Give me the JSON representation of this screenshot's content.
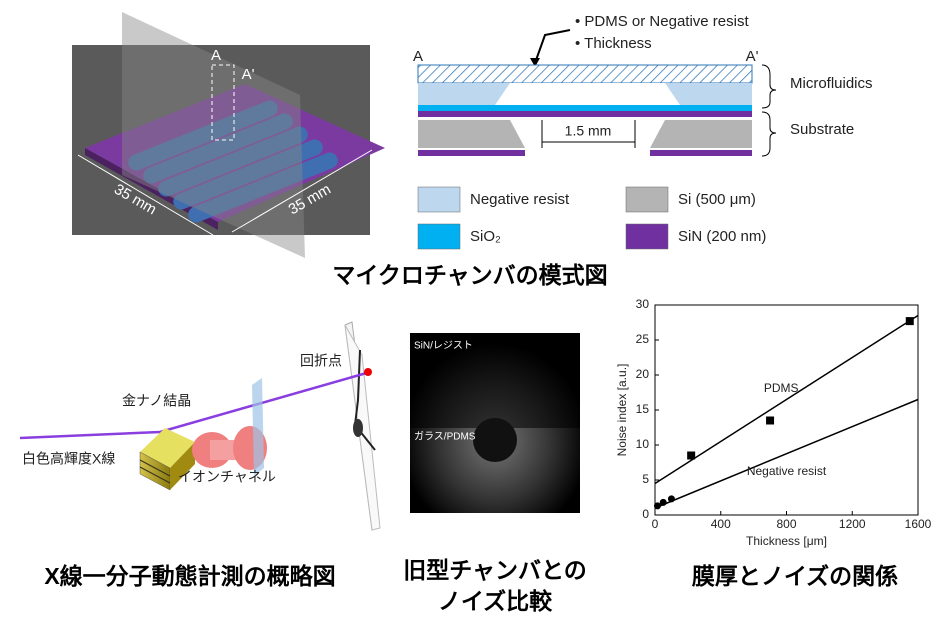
{
  "schematic": {
    "section_start": "A",
    "section_end": "A'",
    "width_label": "35 mm",
    "depth_label": "35 mm"
  },
  "cross_section": {
    "notes": [
      "PDMS or Negative resist",
      "Thickness"
    ],
    "left_end": "A",
    "right_end": "A'",
    "upper_bracket": "Microfluidics",
    "lower_bracket": "Substrate",
    "gap_label": "1.5 mm"
  },
  "legend": [
    {
      "label": "Negative resist",
      "color": "#bcd7ee"
    },
    {
      "label": "Si (500 μm)",
      "color": "#b4b4b4"
    },
    {
      "label": "SiO₂",
      "color": "#00b0f0"
    },
    {
      "label": "SiN (200 nm)",
      "color": "#7030a0"
    }
  ],
  "top_caption": "マイクロチャンバの模式図",
  "setup": {
    "diffraction_spot": "回折点",
    "gold_crystal": "金ナノ結晶",
    "xray": "白色高輝度X線",
    "ion_channel": "イオンチャネル",
    "caption": "X線一分子動態計測の概略図"
  },
  "comparison": {
    "upper_label": "SiN/レジスト",
    "lower_label": "ガラス/PDMS",
    "caption_lines": [
      "旧型チャンバとの",
      "ノイズ比較"
    ]
  },
  "chart_data": {
    "type": "scatter",
    "x_label": "Thickness [μm]",
    "y_label": "Noise index [a.u.]",
    "x": [
      15,
      50,
      100,
      220,
      700,
      1550
    ],
    "values": [
      1.3,
      1.8,
      2.3,
      8.5,
      13.5,
      27.7
    ],
    "color": "#000000",
    "xlim": [
      0,
      1600
    ],
    "ylim": [
      0,
      30
    ],
    "xticks": [
      0,
      400,
      800,
      1200,
      1600
    ],
    "yticks": [
      0,
      5,
      10,
      15,
      20,
      25,
      30
    ],
    "fit_lines": [
      {
        "label": "PDMS",
        "x": [
          0,
          1600
        ],
        "values": [
          4.5,
          28.5
        ]
      },
      {
        "label": "Negative resist",
        "x": [
          0,
          1600
        ],
        "values": [
          1.0,
          16.5
        ]
      }
    ],
    "caption": "膜厚とノイズの関係"
  }
}
